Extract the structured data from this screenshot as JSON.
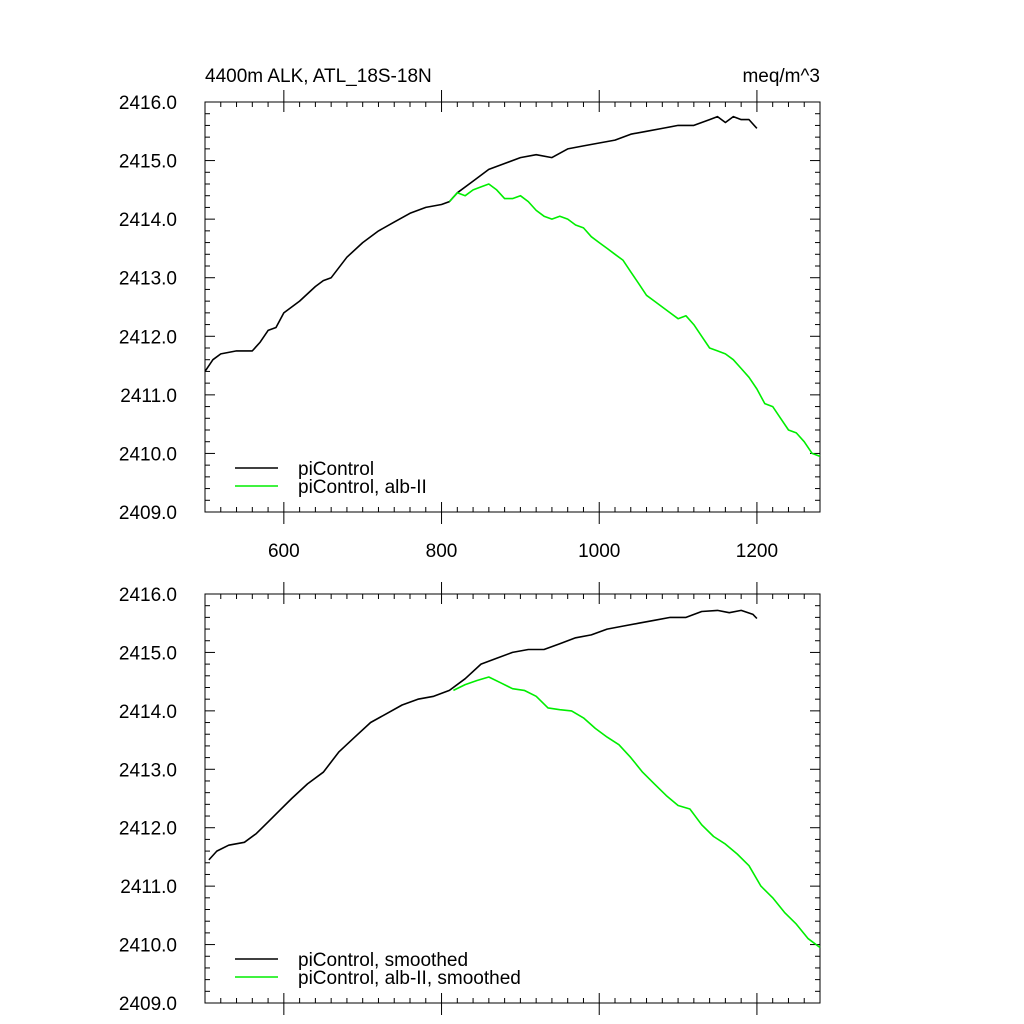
{
  "figure": {
    "title_left": "4400m ALK, ATL_18S-18N",
    "title_right": "meq/m^3"
  },
  "colors": {
    "control": "#000000",
    "albII": "#00ee00"
  },
  "chart_data": [
    {
      "type": "line",
      "title": "4400m ALK, ATL_18S-18N",
      "units": "meq/m^3",
      "xlim": [
        500,
        1280
      ],
      "ylim": [
        2409,
        2416
      ],
      "x_ticks": [
        600,
        800,
        1000,
        1200
      ],
      "y_ticks": [
        2409,
        2410,
        2411,
        2412,
        2413,
        2414,
        2415,
        2416
      ],
      "y_tick_labels": [
        "2409.0",
        "2410.0",
        "2411.0",
        "2412.0",
        "2413.0",
        "2414.0",
        "2415.0",
        "2416.0"
      ],
      "x_tick_labels": [
        "600",
        "800",
        "1000",
        "1200"
      ],
      "show_x_labels": true,
      "legend": {
        "position": "bottom-left",
        "entries": [
          "piControl",
          "piControl, alb-II"
        ]
      },
      "series": [
        {
          "name": "piControl",
          "color": "#000000",
          "x": [
            500,
            510,
            520,
            540,
            560,
            570,
            580,
            590,
            600,
            620,
            640,
            650,
            660,
            680,
            700,
            720,
            740,
            760,
            780,
            800,
            810,
            820,
            840,
            860,
            880,
            900,
            920,
            940,
            960,
            980,
            1000,
            1020,
            1040,
            1060,
            1080,
            1100,
            1120,
            1140,
            1150,
            1160,
            1170,
            1180,
            1190,
            1200
          ],
          "values": [
            2411.4,
            2411.6,
            2411.7,
            2411.75,
            2411.75,
            2411.9,
            2412.1,
            2412.15,
            2412.4,
            2412.6,
            2412.85,
            2412.95,
            2413.0,
            2413.35,
            2413.6,
            2413.8,
            2413.95,
            2414.1,
            2414.2,
            2414.25,
            2414.3,
            2414.45,
            2414.65,
            2414.85,
            2414.95,
            2415.05,
            2415.1,
            2415.05,
            2415.2,
            2415.25,
            2415.3,
            2415.35,
            2415.45,
            2415.5,
            2415.55,
            2415.6,
            2415.6,
            2415.7,
            2415.75,
            2415.65,
            2415.75,
            2415.7,
            2415.7,
            2415.55
          ]
        },
        {
          "name": "piControl, alb-II",
          "color": "#00ee00",
          "x": [
            810,
            820,
            830,
            840,
            850,
            860,
            870,
            880,
            890,
            900,
            910,
            920,
            930,
            940,
            950,
            960,
            970,
            980,
            990,
            1000,
            1010,
            1020,
            1030,
            1040,
            1050,
            1060,
            1070,
            1080,
            1090,
            1100,
            1110,
            1120,
            1130,
            1140,
            1150,
            1160,
            1170,
            1180,
            1190,
            1200,
            1210,
            1220,
            1230,
            1240,
            1250,
            1260,
            1270,
            1280
          ],
          "values": [
            2414.3,
            2414.45,
            2414.4,
            2414.5,
            2414.55,
            2414.6,
            2414.5,
            2414.35,
            2414.35,
            2414.4,
            2414.3,
            2414.15,
            2414.05,
            2414.0,
            2414.05,
            2414.0,
            2413.9,
            2413.85,
            2413.7,
            2413.6,
            2413.5,
            2413.4,
            2413.3,
            2413.1,
            2412.9,
            2412.7,
            2412.6,
            2412.5,
            2412.4,
            2412.3,
            2412.35,
            2412.2,
            2412.0,
            2411.8,
            2411.75,
            2411.7,
            2411.6,
            2411.45,
            2411.3,
            2411.1,
            2410.85,
            2410.8,
            2410.6,
            2410.4,
            2410.35,
            2410.2,
            2410.0,
            2409.95
          ]
        }
      ]
    },
    {
      "type": "line",
      "xlim": [
        500,
        1280
      ],
      "ylim": [
        2409,
        2416
      ],
      "x_ticks": [
        600,
        800,
        1000,
        1200
      ],
      "y_ticks": [
        2409,
        2410,
        2411,
        2412,
        2413,
        2414,
        2415,
        2416
      ],
      "y_tick_labels": [
        "2409.0",
        "2410.0",
        "2411.0",
        "2412.0",
        "2413.0",
        "2414.0",
        "2415.0",
        "2416.0"
      ],
      "show_x_labels": false,
      "legend": {
        "position": "bottom-left",
        "entries": [
          "piControl, smoothed",
          "piControl, alb-II, smoothed"
        ]
      },
      "series": [
        {
          "name": "piControl, smoothed",
          "color": "#000000",
          "x": [
            505,
            515,
            530,
            550,
            565,
            580,
            595,
            610,
            630,
            650,
            670,
            690,
            710,
            730,
            750,
            770,
            790,
            810,
            830,
            850,
            870,
            890,
            910,
            930,
            950,
            970,
            990,
            1010,
            1030,
            1050,
            1070,
            1090,
            1110,
            1130,
            1150,
            1165,
            1180,
            1195,
            1200
          ],
          "values": [
            2411.45,
            2411.6,
            2411.7,
            2411.75,
            2411.9,
            2412.1,
            2412.3,
            2412.5,
            2412.75,
            2412.95,
            2413.3,
            2413.55,
            2413.8,
            2413.95,
            2414.1,
            2414.2,
            2414.25,
            2414.35,
            2414.55,
            2414.8,
            2414.9,
            2415.0,
            2415.05,
            2415.05,
            2415.15,
            2415.25,
            2415.3,
            2415.4,
            2415.45,
            2415.5,
            2415.55,
            2415.6,
            2415.6,
            2415.7,
            2415.72,
            2415.68,
            2415.72,
            2415.65,
            2415.58
          ]
        },
        {
          "name": "piControl, alb-II, smoothed",
          "color": "#00ee00",
          "x": [
            815,
            830,
            845,
            860,
            875,
            890,
            905,
            920,
            935,
            950,
            965,
            980,
            995,
            1010,
            1025,
            1040,
            1055,
            1070,
            1085,
            1100,
            1115,
            1130,
            1145,
            1160,
            1175,
            1190,
            1205,
            1220,
            1235,
            1250,
            1265,
            1280
          ],
          "values": [
            2414.35,
            2414.45,
            2414.52,
            2414.58,
            2414.48,
            2414.38,
            2414.35,
            2414.25,
            2414.05,
            2414.02,
            2414.0,
            2413.88,
            2413.7,
            2413.55,
            2413.42,
            2413.2,
            2412.95,
            2412.75,
            2412.55,
            2412.38,
            2412.32,
            2412.05,
            2411.85,
            2411.72,
            2411.55,
            2411.35,
            2411.0,
            2410.8,
            2410.55,
            2410.35,
            2410.1,
            2409.95
          ]
        }
      ]
    }
  ]
}
